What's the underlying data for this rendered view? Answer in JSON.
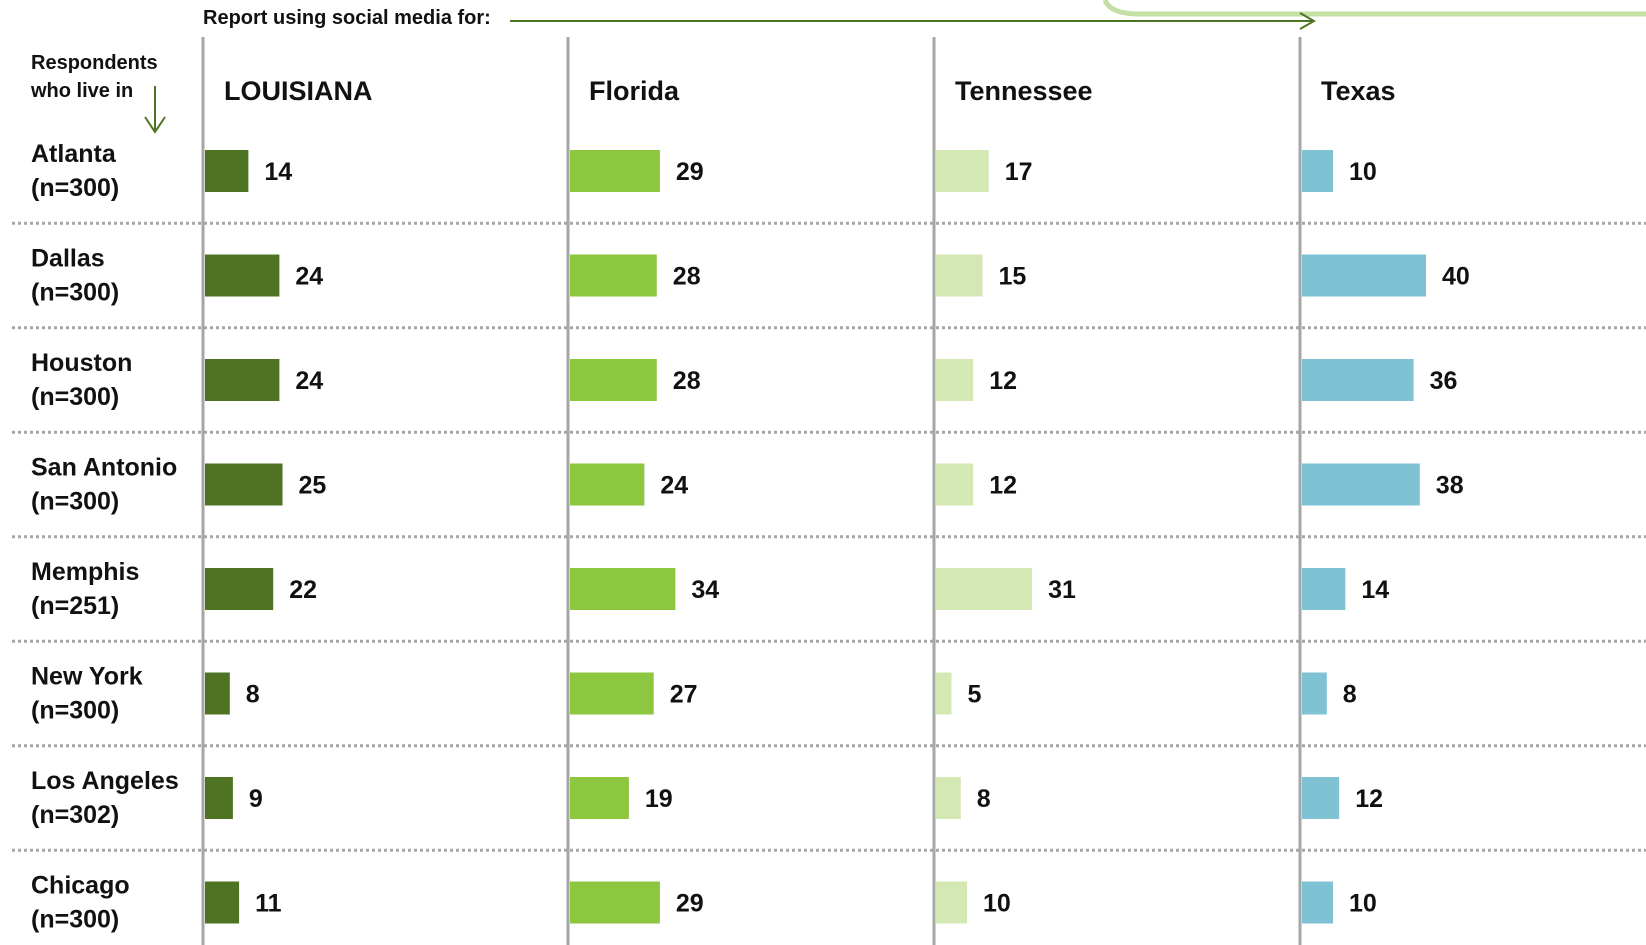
{
  "header": {
    "report_label": "Report using social media for:",
    "respondents_line1": "Respondents",
    "respondents_line2": "who live in"
  },
  "colors": {
    "LOUISIANA": "#4e7423",
    "Florida": "#8dc63f",
    "Tennessee": "#d3e8b3",
    "Texas": "#7ec2d4",
    "axis": "#a6a6a6",
    "dotted": "#a6a6a6",
    "arrow": "#4e7423",
    "bracket": "#c5e0a5"
  },
  "chart_data": {
    "type": "bar",
    "orientation": "horizontal",
    "layout": "small-multiples",
    "title": "",
    "categories": [
      "Atlanta",
      "Dallas",
      "Houston",
      "San Antonio",
      "Memphis",
      "New York",
      "Los Angeles",
      "Chicago"
    ],
    "sample_sizes": [
      "(n=300)",
      "(n=300)",
      "(n=300)",
      "(n=300)",
      "(n=251)",
      "(n=300)",
      "(n=302)",
      "(n=300)"
    ],
    "series": [
      {
        "name": "LOUISIANA",
        "values": [
          14,
          24,
          24,
          25,
          22,
          8,
          9,
          11
        ]
      },
      {
        "name": "Florida",
        "values": [
          29,
          28,
          28,
          24,
          34,
          27,
          19,
          29
        ]
      },
      {
        "name": "Tennessee",
        "values": [
          17,
          15,
          12,
          12,
          31,
          5,
          8,
          10
        ]
      },
      {
        "name": "Texas",
        "values": [
          10,
          40,
          36,
          38,
          14,
          8,
          12,
          10
        ]
      }
    ],
    "grid": "dotted-row-separators"
  }
}
